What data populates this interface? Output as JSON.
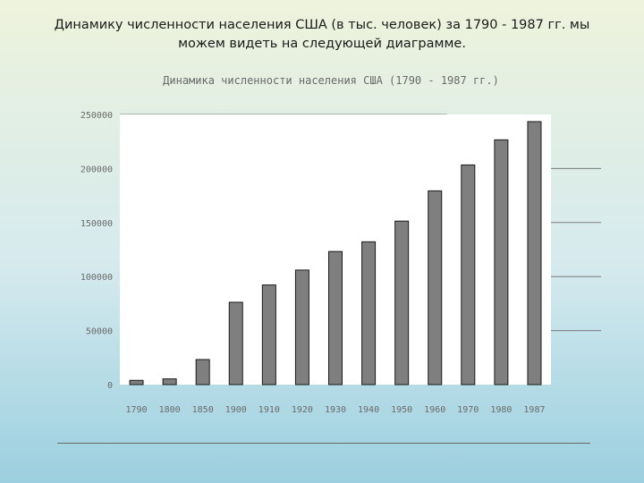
{
  "slide": {
    "title": "Динамику численности населения США (в тыс. человек) за 1790 - 1987 гг. мы можем видеть на следующей диаграмме."
  },
  "chart_data": {
    "type": "bar",
    "title": "Динамика численности населения США (1790 - 1987 гг.)",
    "categories": [
      "1790",
      "1800",
      "1850",
      "1900",
      "1910",
      "1920",
      "1930",
      "1940",
      "1950",
      "1960",
      "1970",
      "1980",
      "1987"
    ],
    "values": [
      3929,
      5308,
      23192,
      76212,
      92228,
      106022,
      123203,
      132165,
      151326,
      179323,
      203302,
      226546,
      243400
    ],
    "ylim": [
      0,
      250000
    ],
    "yticks": [
      "0",
      "50000",
      "100000",
      "150000",
      "200000",
      "250000"
    ],
    "grid": true,
    "colors": {
      "bar": "#7f7f7f",
      "bar_stroke": "#1a1a1a",
      "plot_bg": "#ffffff",
      "grid": "#7a7a7a",
      "tick_text": "#6a6a6a"
    }
  }
}
